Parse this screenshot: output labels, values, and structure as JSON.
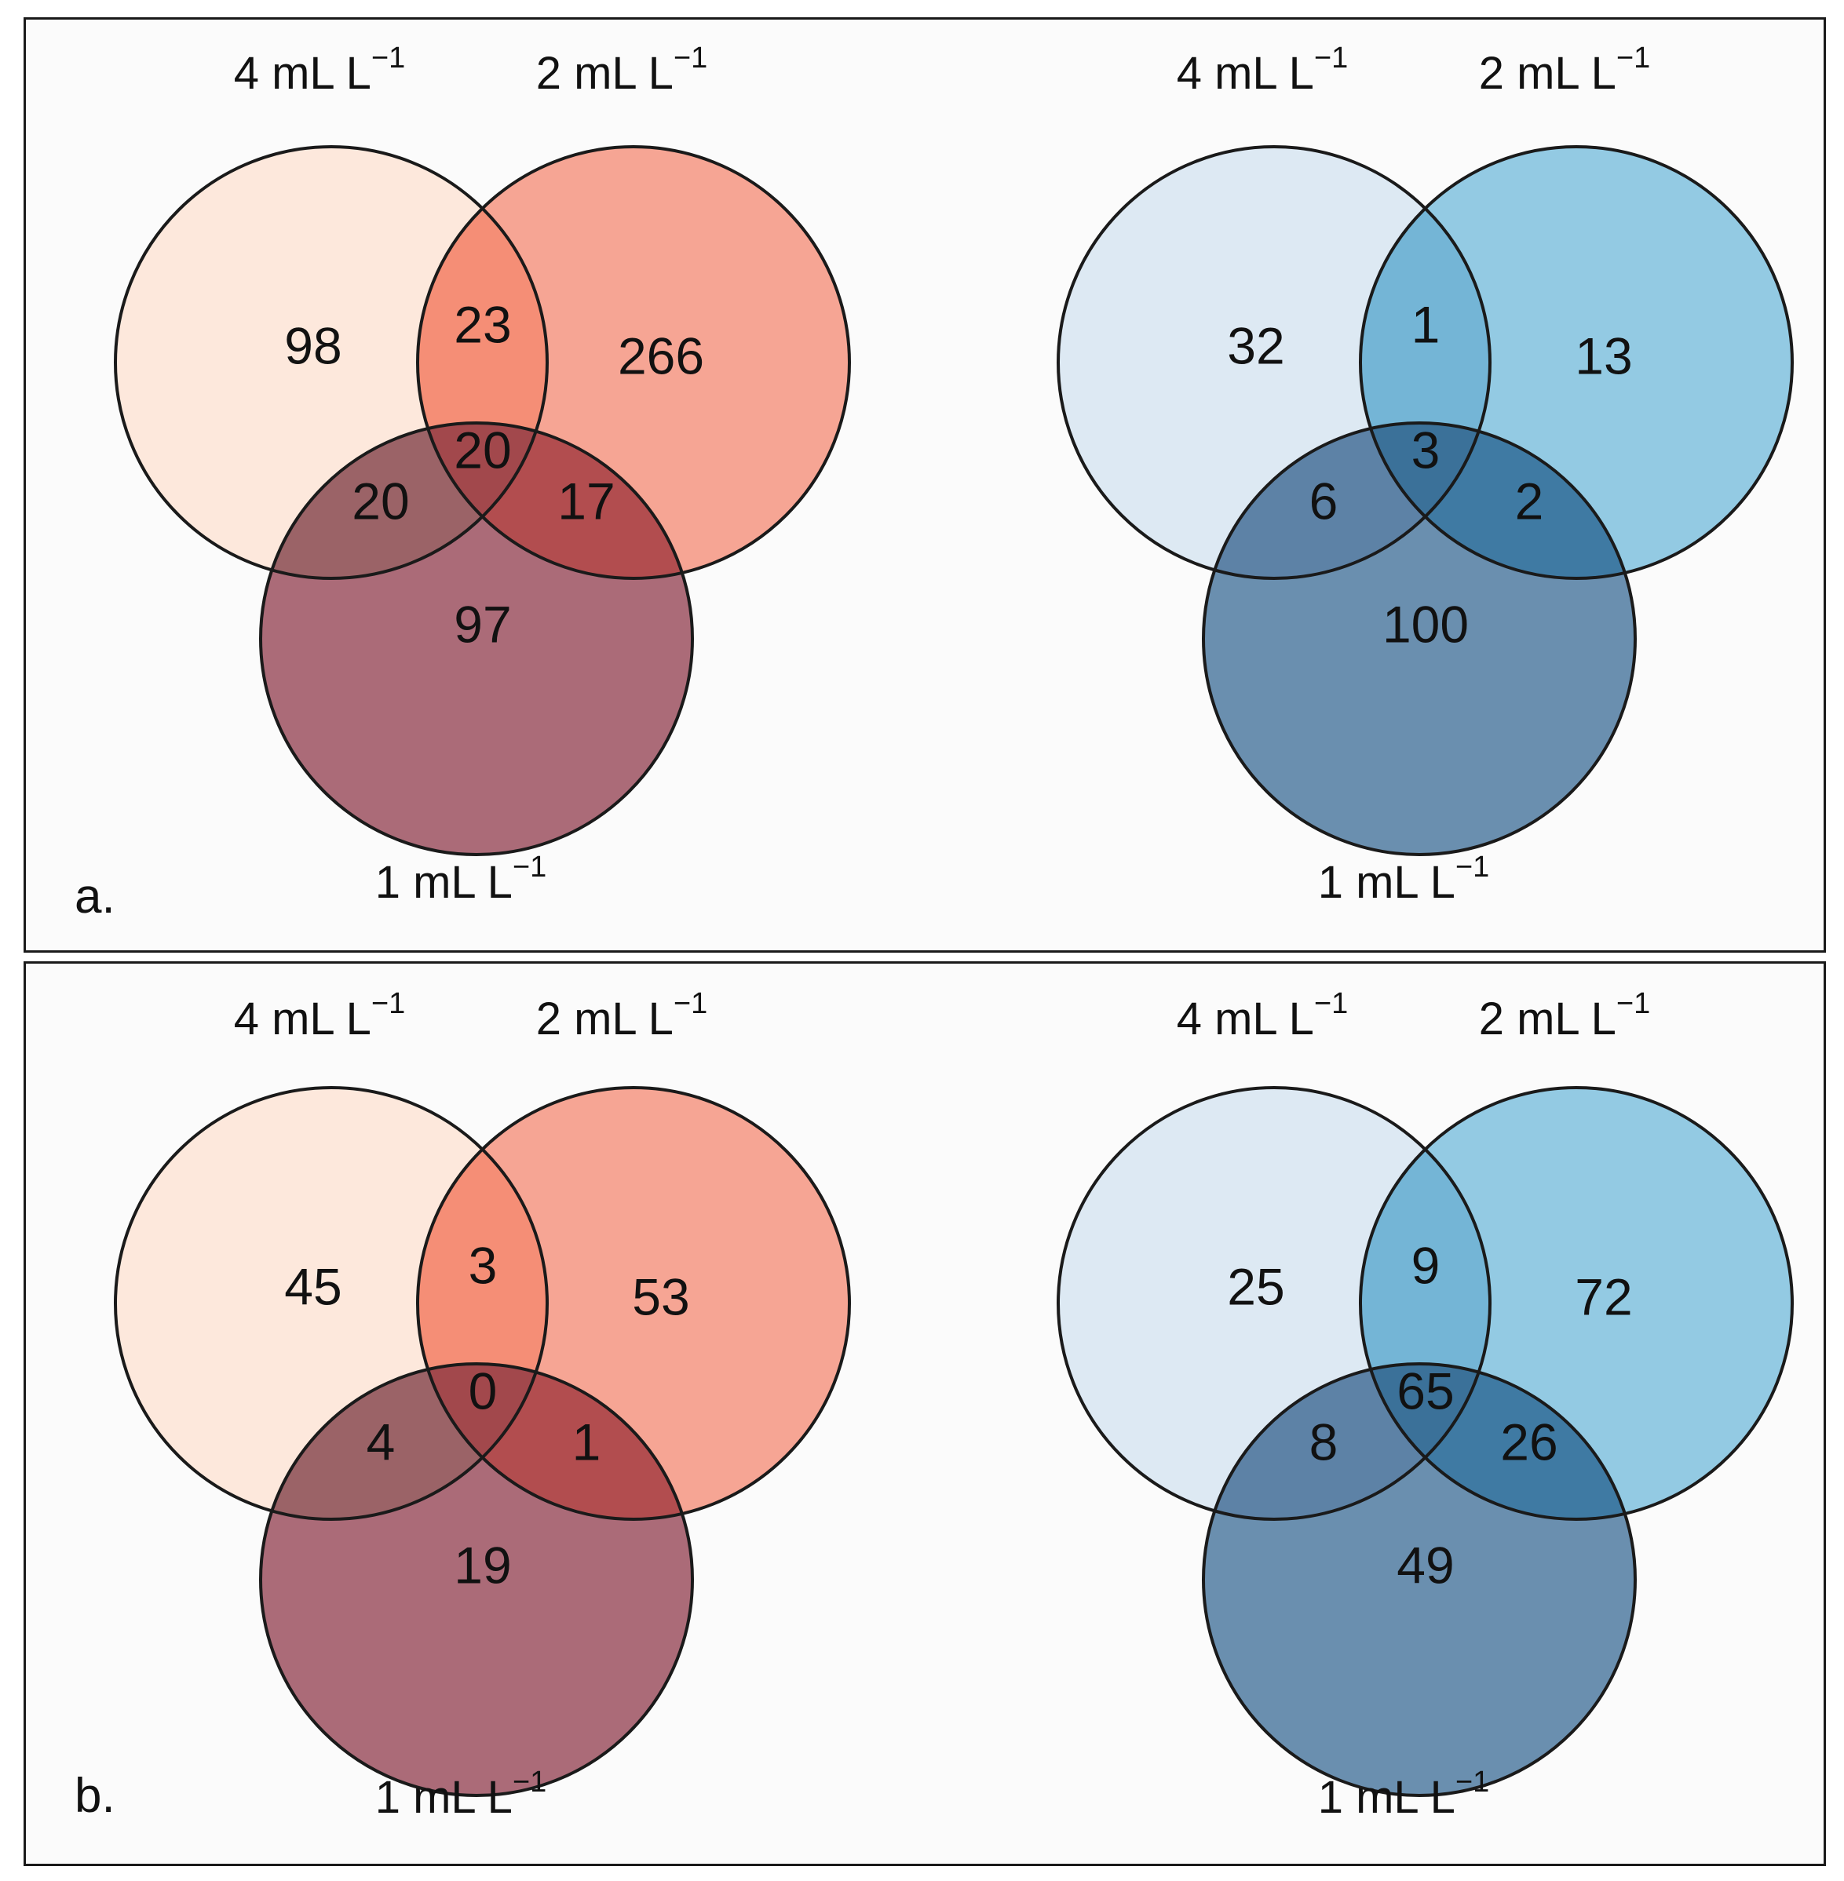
{
  "panels": [
    {
      "letter": "a.",
      "diagrams": [
        {
          "palette": "red",
          "labels": {
            "four": "4 mL L",
            "two": "2 mL L",
            "one": "1 mL L",
            "exp": "−1"
          },
          "values": {
            "only4": "98",
            "only2": "266",
            "only1": "97",
            "i42": "23",
            "i41": "20",
            "i21": "17",
            "all": "20"
          }
        },
        {
          "palette": "blue",
          "labels": {
            "four": "4 mL L",
            "two": "2 mL L",
            "one": "1 mL L",
            "exp": "−1"
          },
          "values": {
            "only4": "32",
            "only2": "13",
            "only1": "100",
            "i42": "1",
            "i41": "6",
            "i21": "2",
            "all": "3"
          }
        }
      ]
    },
    {
      "letter": "b.",
      "diagrams": [
        {
          "palette": "red",
          "labels": {
            "four": "4 mL L",
            "two": "2 mL L",
            "one": "1 mL L",
            "exp": "−1"
          },
          "values": {
            "only4": "45",
            "only2": "53",
            "only1": "19",
            "i42": "3",
            "i41": "4",
            "i21": "1",
            "all": "0"
          }
        },
        {
          "palette": "blue",
          "labels": {
            "four": "4 mL L",
            "two": "2 mL L",
            "one": "1 mL L",
            "exp": "−1"
          },
          "values": {
            "only4": "25",
            "only2": "72",
            "only1": "49",
            "i42": "9",
            "i41": "8",
            "i21": "26",
            "all": "65"
          }
        }
      ]
    }
  ],
  "colors": {
    "red": {
      "c4": "#fde8dc",
      "c2": "#f6a08e",
      "c1": "#a5606e"
    },
    "blue": {
      "c4": "#dde9f3",
      "c2": "#8dc7e1",
      "c1": "#5f86a9"
    },
    "outline": "#1a1a1a"
  }
}
